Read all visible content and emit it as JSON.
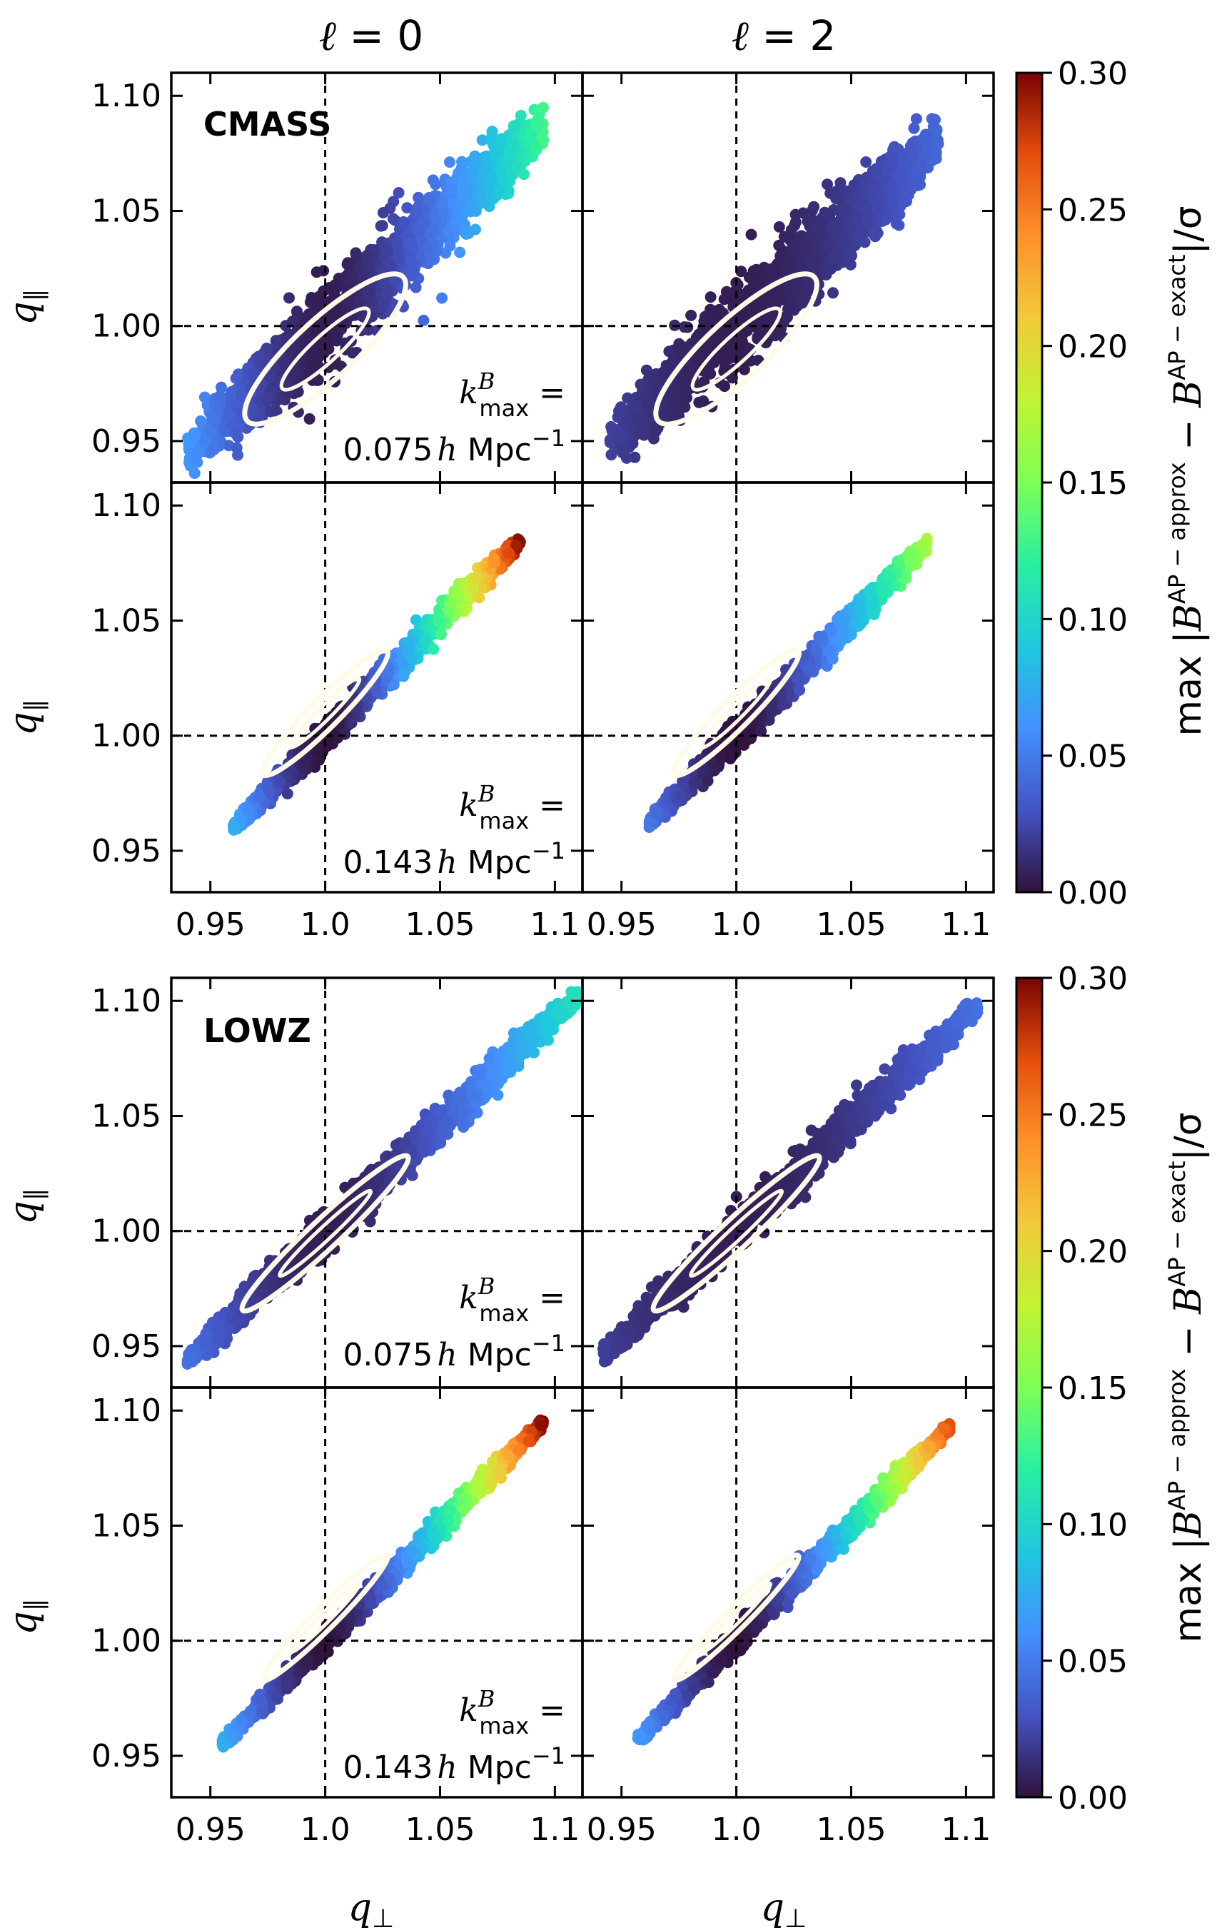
{
  "column_titles": [
    {
      "ell": "ℓ",
      "eq": " = 0"
    },
    {
      "ell": "ℓ",
      "eq": " = 2"
    }
  ],
  "sample_labels": [
    "CMASS",
    "LOWZ"
  ],
  "kmax_labels": [
    {
      "line1_k": "k",
      "line1_sup": "B",
      "line1_sub": "max",
      "line1_eq": " =",
      "value": "0.075",
      "h": "h",
      "unit": " Mpc",
      "exp": "−1"
    },
    {
      "line1_k": "k",
      "line1_sup": "B",
      "line1_sub": "max",
      "line1_eq": " =",
      "value": "0.143",
      "h": "h",
      "unit": " Mpc",
      "exp": "−1"
    }
  ],
  "axis_labels": {
    "y_main": "q",
    "y_sub": "∥",
    "x_main": "q",
    "x_sub": "⊥"
  },
  "colorbar": {
    "label_pre": "max |",
    "label_B1": "B",
    "label_sup1": "AP − approx",
    "label_mid": " − ",
    "label_B2": "B",
    "label_sup2": "AP − exact",
    "label_post": "|/σ",
    "ticks": [
      "0.00",
      "0.05",
      "0.10",
      "0.15",
      "0.20",
      "0.25",
      "0.30"
    ],
    "range": [
      0.0,
      0.3
    ],
    "colormap": "turbo"
  },
  "chart_data": {
    "type": "scatter",
    "layout": "2 groups (CMASS, LOWZ) × 2 k_max rows × 2 multipoles (ℓ=0, ℓ=2)",
    "x_ticks": [
      "0.95",
      "1.0",
      "1.05",
      "1.1"
    ],
    "x_tick_values": [
      0.95,
      1.0,
      1.05,
      1.1
    ],
    "y_ticks": [
      "0.95",
      "1.00",
      "1.05",
      "1.10"
    ],
    "y_tick_values": [
      0.95,
      1.0,
      1.05,
      1.1
    ],
    "xlim": [
      0.933,
      1.112
    ],
    "ylim": [
      0.932,
      1.11
    ],
    "reference_lines": {
      "vertical_x": 1.0,
      "horizontal_y": 1.0
    },
    "panels": [
      {
        "group": "CMASS",
        "kmax": "0.075",
        "ell": 0,
        "x_range": [
          0.94,
          1.095
        ],
        "slope": 0.92,
        "width": 0.018,
        "color_min": 0.005,
        "color_max": 0.13,
        "contour": {
          "center": [
            1.0,
            0.99
          ],
          "semi_major": 0.034,
          "semi_minor": 0.008
        }
      },
      {
        "group": "CMASS",
        "kmax": "0.075",
        "ell": 2,
        "x_range": [
          0.945,
          1.088
        ],
        "slope": 0.92,
        "width": 0.018,
        "color_min": 0.005,
        "color_max": 0.04,
        "contour": {
          "center": [
            1.0,
            0.99
          ],
          "semi_major": 0.034,
          "semi_minor": 0.008
        }
      },
      {
        "group": "CMASS",
        "kmax": "0.143",
        "ell": 0,
        "x_range": [
          0.96,
          1.085
        ],
        "slope": 1.0,
        "width": 0.006,
        "color_min": 0.0,
        "color_max": 0.3,
        "contour": {
          "center": [
            1.0,
            1.01
          ],
          "semi_major": 0.027,
          "semi_minor": 0.004
        }
      },
      {
        "group": "CMASS",
        "kmax": "0.143",
        "ell": 2,
        "x_range": [
          0.962,
          1.083
        ],
        "slope": 1.0,
        "width": 0.006,
        "color_min": 0.0,
        "color_max": 0.17,
        "contour": {
          "center": [
            1.0,
            1.01
          ],
          "semi_major": 0.027,
          "semi_minor": 0.004
        }
      },
      {
        "group": "LOWZ",
        "kmax": "0.075",
        "ell": 0,
        "x_range": [
          0.94,
          1.11
        ],
        "slope": 0.93,
        "width": 0.008,
        "color_min": 0.005,
        "color_max": 0.11,
        "contour": {
          "center": [
            1.0,
            0.999
          ],
          "semi_major": 0.036,
          "semi_minor": 0.004
        }
      },
      {
        "group": "LOWZ",
        "kmax": "0.075",
        "ell": 2,
        "x_range": [
          0.942,
          1.105
        ],
        "slope": 0.93,
        "width": 0.008,
        "color_min": 0.005,
        "color_max": 0.045,
        "contour": {
          "center": [
            1.0,
            0.999
          ],
          "semi_major": 0.036,
          "semi_minor": 0.004
        }
      },
      {
        "group": "LOWZ",
        "kmax": "0.143",
        "ell": 0,
        "x_range": [
          0.955,
          1.095
        ],
        "slope": 1.0,
        "width": 0.005,
        "color_min": 0.0,
        "color_max": 0.3,
        "contour": {
          "center": [
            1.0,
            1.01
          ],
          "semi_major": 0.027,
          "semi_minor": 0.003
        }
      },
      {
        "group": "LOWZ",
        "kmax": "0.143",
        "ell": 2,
        "x_range": [
          0.957,
          1.093
        ],
        "slope": 1.0,
        "width": 0.005,
        "color_min": 0.0,
        "color_max": 0.27,
        "contour": {
          "center": [
            1.0,
            1.01
          ],
          "semi_major": 0.027,
          "semi_minor": 0.003
        }
      }
    ]
  }
}
